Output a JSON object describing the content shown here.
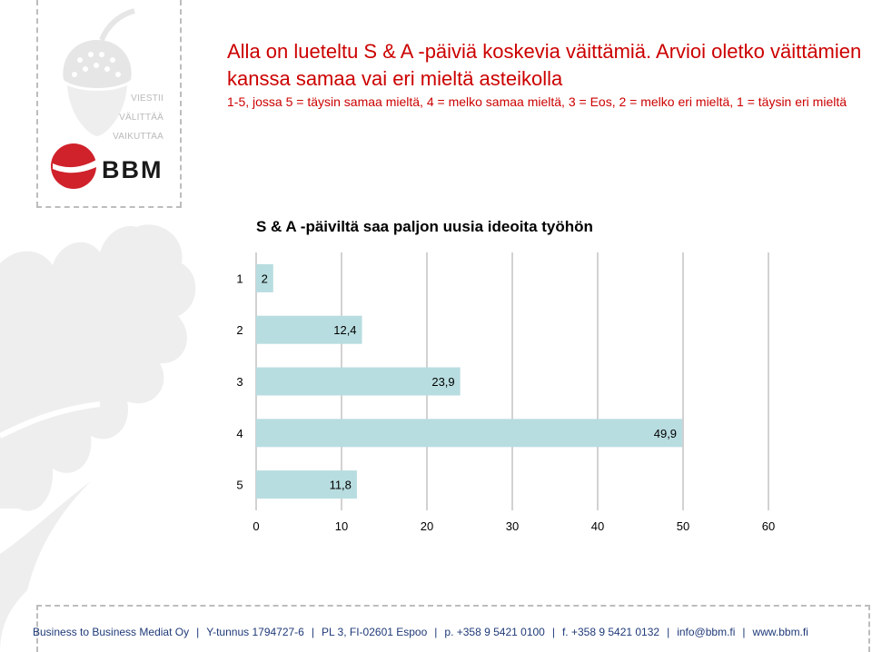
{
  "heading": "Alla on lueteltu S & A -päiviä koskevia väittämiä. Arvioi oletko väittämien kanssa samaa vai eri mieltä asteikolla",
  "subheading": "1-5, jossa 5 = täysin samaa mieltä, 4 = melko samaa mieltä, 3 = Eos, 2 = melko eri mieltä, 1 = täysin eri mieltä",
  "branding": {
    "tagline": [
      "VIESTII",
      "VÄLITTÄÄ",
      "VAIKUTTAA"
    ],
    "logo_text": "BBM",
    "logo_color": "#d0222b"
  },
  "chart_data": {
    "type": "bar",
    "orientation": "horizontal",
    "title": "S & A -päiviltä saa paljon uusia ideoita työhön",
    "categories": [
      "1",
      "2",
      "3",
      "4",
      "5"
    ],
    "values": [
      2,
      12.4,
      23.9,
      49.9,
      11.8
    ],
    "data_labels": [
      "2",
      "12,4",
      "23,9",
      "49,9",
      "11,8"
    ],
    "xlim": [
      0,
      60
    ],
    "xticks": [
      "0",
      "10",
      "20",
      "30",
      "40",
      "50",
      "60"
    ],
    "grid": true,
    "bar_color": "#b8dde0"
  },
  "footer": {
    "items": [
      "Business to Business Mediat Oy",
      "Y-tunnus 1794727-6",
      "PL 3, FI-02601 Espoo",
      "p. +358 9 5421 0100",
      "f. +358 9 5421 0132",
      "info@bbm.fi",
      "www.bbm.fi"
    ]
  }
}
